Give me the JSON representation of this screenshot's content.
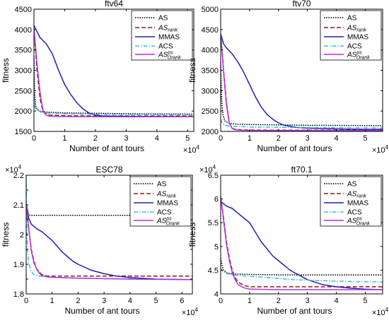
{
  "chart_data": [
    {
      "type": "line",
      "title": "ftv64",
      "xlabel": "Number of ant tours",
      "ylabel": "fitness",
      "xlim": [
        0,
        52000
      ],
      "ylim": [
        1500,
        4500
      ],
      "x_ticks": [
        0,
        10000,
        20000,
        30000,
        40000,
        50000
      ],
      "x_tick_labels": [
        "0",
        "1",
        "2",
        "3",
        "4",
        "5"
      ],
      "y_ticks": [
        1500,
        2000,
        2500,
        3000,
        3500,
        4000,
        4500
      ],
      "y_tick_labels": [
        "1500",
        "2000",
        "2500",
        "3000",
        "3500",
        "4000",
        "4500"
      ],
      "x_multiplier": "×10^4",
      "legend_position": "top-right",
      "series": [
        {
          "name": "AS",
          "color": "#000000",
          "style": "dotted",
          "x": [
            0,
            200,
            500,
            1000,
            2000,
            3000,
            5000,
            10000,
            20000,
            30000,
            40000,
            52000
          ],
          "y": [
            3350,
            2500,
            2150,
            2050,
            2000,
            1985,
            1970,
            1955,
            1945,
            1935,
            1930,
            1925
          ]
        },
        {
          "name": "AS_rank",
          "color": "#8B1A1A",
          "style": "dashed",
          "x": [
            0,
            500,
            1000,
            2000,
            3000,
            5000,
            10000,
            20000,
            52000
          ],
          "y": [
            4000,
            3500,
            3000,
            2300,
            1980,
            1900,
            1885,
            1880,
            1880
          ]
        },
        {
          "name": "MMAS",
          "color": "#1F1FB4",
          "style": "solid",
          "x": [
            0,
            1000,
            2000,
            4000,
            6000,
            8000,
            10000,
            12000,
            14000,
            16000,
            18000,
            20000,
            22000,
            30000,
            40000,
            52000
          ],
          "y": [
            4100,
            3950,
            3800,
            3650,
            3400,
            3000,
            2650,
            2400,
            2200,
            2050,
            1950,
            1900,
            1880,
            1870,
            1865,
            1860
          ]
        },
        {
          "name": "ACS",
          "color": "#3BBFD9",
          "style": "dashdot",
          "x": [
            0,
            300,
            1000,
            2000,
            5000,
            10000,
            20000,
            52000
          ],
          "y": [
            2350,
            2100,
            2020,
            1980,
            1950,
            1930,
            1920,
            1910
          ]
        },
        {
          "name": "AS_Orank^ps",
          "color": "#B22FE0",
          "style": "solid",
          "x": [
            0,
            500,
            1000,
            2000,
            3000,
            4000,
            5000,
            7000,
            10000,
            20000,
            52000
          ],
          "y": [
            4000,
            3600,
            3150,
            2450,
            2000,
            1900,
            1875,
            1870,
            1865,
            1860,
            1860
          ]
        }
      ]
    },
    {
      "type": "line",
      "title": "ftv70",
      "xlabel": "Number of ant tours",
      "ylabel": "fitness",
      "xlim": [
        0,
        56000
      ],
      "ylim": [
        2000,
        5000
      ],
      "x_ticks": [
        0,
        10000,
        20000,
        30000,
        40000,
        50000
      ],
      "x_tick_labels": [
        "0",
        "1",
        "2",
        "3",
        "4",
        "5"
      ],
      "y_ticks": [
        2000,
        2500,
        3000,
        3500,
        4000,
        4500,
        5000
      ],
      "y_tick_labels": [
        "2000",
        "2500",
        "3000",
        "3500",
        "4000",
        "4500",
        "5000"
      ],
      "x_multiplier": "×10^4",
      "legend_position": "top-right",
      "series": [
        {
          "name": "AS",
          "color": "#000000",
          "style": "dotted",
          "x": [
            0,
            300,
            800,
            1500,
            3000,
            5000,
            10000,
            20000,
            30000,
            45000,
            56000
          ],
          "y": [
            3700,
            2800,
            2400,
            2250,
            2200,
            2180,
            2170,
            2160,
            2150,
            2145,
            2140
          ]
        },
        {
          "name": "AS_rank",
          "color": "#8B1A1A",
          "style": "dashed",
          "x": [
            0,
            500,
            1000,
            2000,
            3000,
            4000,
            6000,
            10000,
            20000,
            56000
          ],
          "y": [
            4400,
            4000,
            3500,
            2700,
            2200,
            2070,
            2040,
            2035,
            2030,
            2030
          ]
        },
        {
          "name": "MMAS",
          "color": "#1F1FB4",
          "style": "solid",
          "x": [
            0,
            1000,
            2000,
            4000,
            6000,
            8000,
            10000,
            12000,
            14000,
            16000,
            18000,
            20000,
            22000,
            26000,
            30000,
            40000,
            50000,
            56000
          ],
          "y": [
            4400,
            4150,
            4050,
            3900,
            3700,
            3450,
            3150,
            2850,
            2600,
            2420,
            2300,
            2210,
            2150,
            2100,
            2080,
            2060,
            2050,
            2050
          ]
        },
        {
          "name": "ACS",
          "color": "#3BBFD9",
          "style": "dashdot",
          "x": [
            0,
            500,
            1500,
            3000,
            6000,
            10000,
            20000,
            30000,
            45000,
            56000
          ],
          "y": [
            2300,
            2200,
            2150,
            2130,
            2120,
            2110,
            2100,
            2095,
            2090,
            2085
          ]
        },
        {
          "name": "AS_Orank^ps",
          "color": "#B22FE0",
          "style": "solid",
          "x": [
            0,
            500,
            1000,
            2000,
            3000,
            4000,
            5000,
            7000,
            10000,
            20000,
            56000
          ],
          "y": [
            4400,
            3950,
            3450,
            2650,
            2200,
            2070,
            2040,
            2030,
            2025,
            2020,
            2020
          ]
        }
      ]
    },
    {
      "type": "line",
      "title": "ESC78",
      "xlabel": "Number of ant tours",
      "ylabel": "fitness",
      "xlim": [
        0,
        64000
      ],
      "ylim": [
        18000,
        22000
      ],
      "x_ticks": [
        0,
        10000,
        20000,
        30000,
        40000,
        50000,
        60000
      ],
      "x_tick_labels": [
        "0",
        "1",
        "2",
        "3",
        "4",
        "5",
        "6"
      ],
      "y_ticks": [
        18000,
        18500,
        19000,
        19500,
        20000,
        20500,
        21000,
        21500,
        22000
      ],
      "y_tick_labels": [
        "1.8",
        "",
        "1.9",
        "",
        "2",
        "",
        "2.1",
        "",
        "2.2"
      ],
      "y_multiplier": "×10^4",
      "x_multiplier": "×10^4",
      "legend_position": "top-right",
      "series": [
        {
          "name": "AS",
          "color": "#000000",
          "style": "dotted",
          "x": [
            0,
            400,
            800,
            1500,
            64000
          ],
          "y": [
            21100,
            20900,
            20700,
            20650,
            20650
          ]
        },
        {
          "name": "AS_rank",
          "color": "#8B1A1A",
          "style": "dashed",
          "x": [
            0,
            1000,
            2000,
            3000,
            4000,
            5000,
            6000,
            8000,
            10000,
            64000
          ],
          "y": [
            21000,
            20200,
            19500,
            19100,
            18850,
            18750,
            18650,
            18600,
            18600,
            18600
          ]
        },
        {
          "name": "MMAS",
          "color": "#1F1FB4",
          "style": "solid",
          "x": [
            0,
            1000,
            2000,
            4000,
            6000,
            8000,
            10000,
            12000,
            14000,
            16000,
            18000,
            20000,
            25000,
            30000,
            35000,
            40000,
            50000,
            64000
          ],
          "y": [
            21000,
            20550,
            20350,
            20200,
            20100,
            19950,
            19800,
            19600,
            19400,
            19250,
            19100,
            19000,
            18800,
            18680,
            18600,
            18550,
            18500,
            18480
          ]
        },
        {
          "name": "ACS",
          "color": "#3BBFD9",
          "style": "dashdot",
          "x": [
            0,
            200,
            500,
            1000,
            2000,
            3000,
            5000,
            10000,
            20000,
            40000,
            64000
          ],
          "y": [
            22000,
            20500,
            19500,
            19000,
            18750,
            18650,
            18600,
            18560,
            18530,
            18500,
            18480
          ]
        },
        {
          "name": "AS_Orank^ps",
          "color": "#B22FE0",
          "style": "solid",
          "x": [
            0,
            1000,
            2000,
            3000,
            4000,
            5000,
            6000,
            8000,
            10000,
            20000,
            40000,
            64000
          ],
          "y": [
            21000,
            20200,
            19450,
            19050,
            18850,
            18700,
            18620,
            18580,
            18560,
            18530,
            18500,
            18480
          ]
        }
      ]
    },
    {
      "type": "line",
      "title": "ft70.1",
      "xlabel": "Number of ant tours",
      "ylabel": "fitness",
      "xlim": [
        0,
        56000
      ],
      "ylim": [
        40000,
        65000
      ],
      "x_ticks": [
        0,
        10000,
        20000,
        30000,
        40000,
        50000
      ],
      "x_tick_labels": [
        "0",
        "1",
        "2",
        "3",
        "4",
        "5"
      ],
      "y_ticks": [
        40000,
        45000,
        50000,
        55000,
        60000,
        65000
      ],
      "y_tick_labels": [
        "4",
        "4.5",
        "5",
        "5.5",
        "6",
        "6.5"
      ],
      "y_multiplier": "×10^4",
      "x_multiplier": "×10^4",
      "legend_position": "top-right",
      "series": [
        {
          "name": "AS",
          "color": "#000000",
          "style": "dotted",
          "x": [
            0,
            500,
            1000,
            2000,
            3000,
            5000,
            10000,
            20000,
            40000,
            56000
          ],
          "y": [
            47500,
            46000,
            45000,
            44500,
            44300,
            44200,
            44100,
            44000,
            44000,
            44000
          ]
        },
        {
          "name": "AS_rank",
          "color": "#8B1A1A",
          "style": "dashed",
          "x": [
            0,
            1000,
            2000,
            3000,
            4000,
            5000,
            6000,
            8000,
            10000,
            56000
          ],
          "y": [
            60500,
            56000,
            51000,
            47500,
            45000,
            43500,
            42500,
            41800,
            41500,
            41500
          ]
        },
        {
          "name": "MMAS",
          "color": "#1F1FB4",
          "style": "solid",
          "x": [
            0,
            2000,
            4000,
            6000,
            8000,
            10000,
            12000,
            14000,
            16000,
            18000,
            20000,
            22000,
            24000,
            26000,
            30000,
            35000,
            40000,
            45000,
            50000,
            56000
          ],
          "y": [
            59500,
            58500,
            58000,
            57000,
            56000,
            55000,
            53000,
            51000,
            49500,
            48000,
            47000,
            46000,
            45000,
            44300,
            43000,
            42000,
            41500,
            41200,
            41000,
            40900
          ]
        },
        {
          "name": "ACS",
          "color": "#3BBFD9",
          "style": "dashdot",
          "x": [
            0,
            300,
            1000,
            2000,
            4000,
            8000,
            15000,
            25000,
            40000,
            56000
          ],
          "y": [
            45500,
            45000,
            44600,
            44300,
            44000,
            43800,
            43500,
            43000,
            42700,
            42500
          ]
        },
        {
          "name": "AS_Orank^ps",
          "color": "#B22FE0",
          "style": "solid",
          "x": [
            0,
            1000,
            2000,
            3000,
            4000,
            5000,
            6000,
            8000,
            10000,
            20000,
            40000,
            56000
          ],
          "y": [
            60500,
            55500,
            50500,
            47000,
            44500,
            43000,
            42000,
            41300,
            41000,
            40900,
            40900,
            40900
          ]
        }
      ]
    }
  ]
}
